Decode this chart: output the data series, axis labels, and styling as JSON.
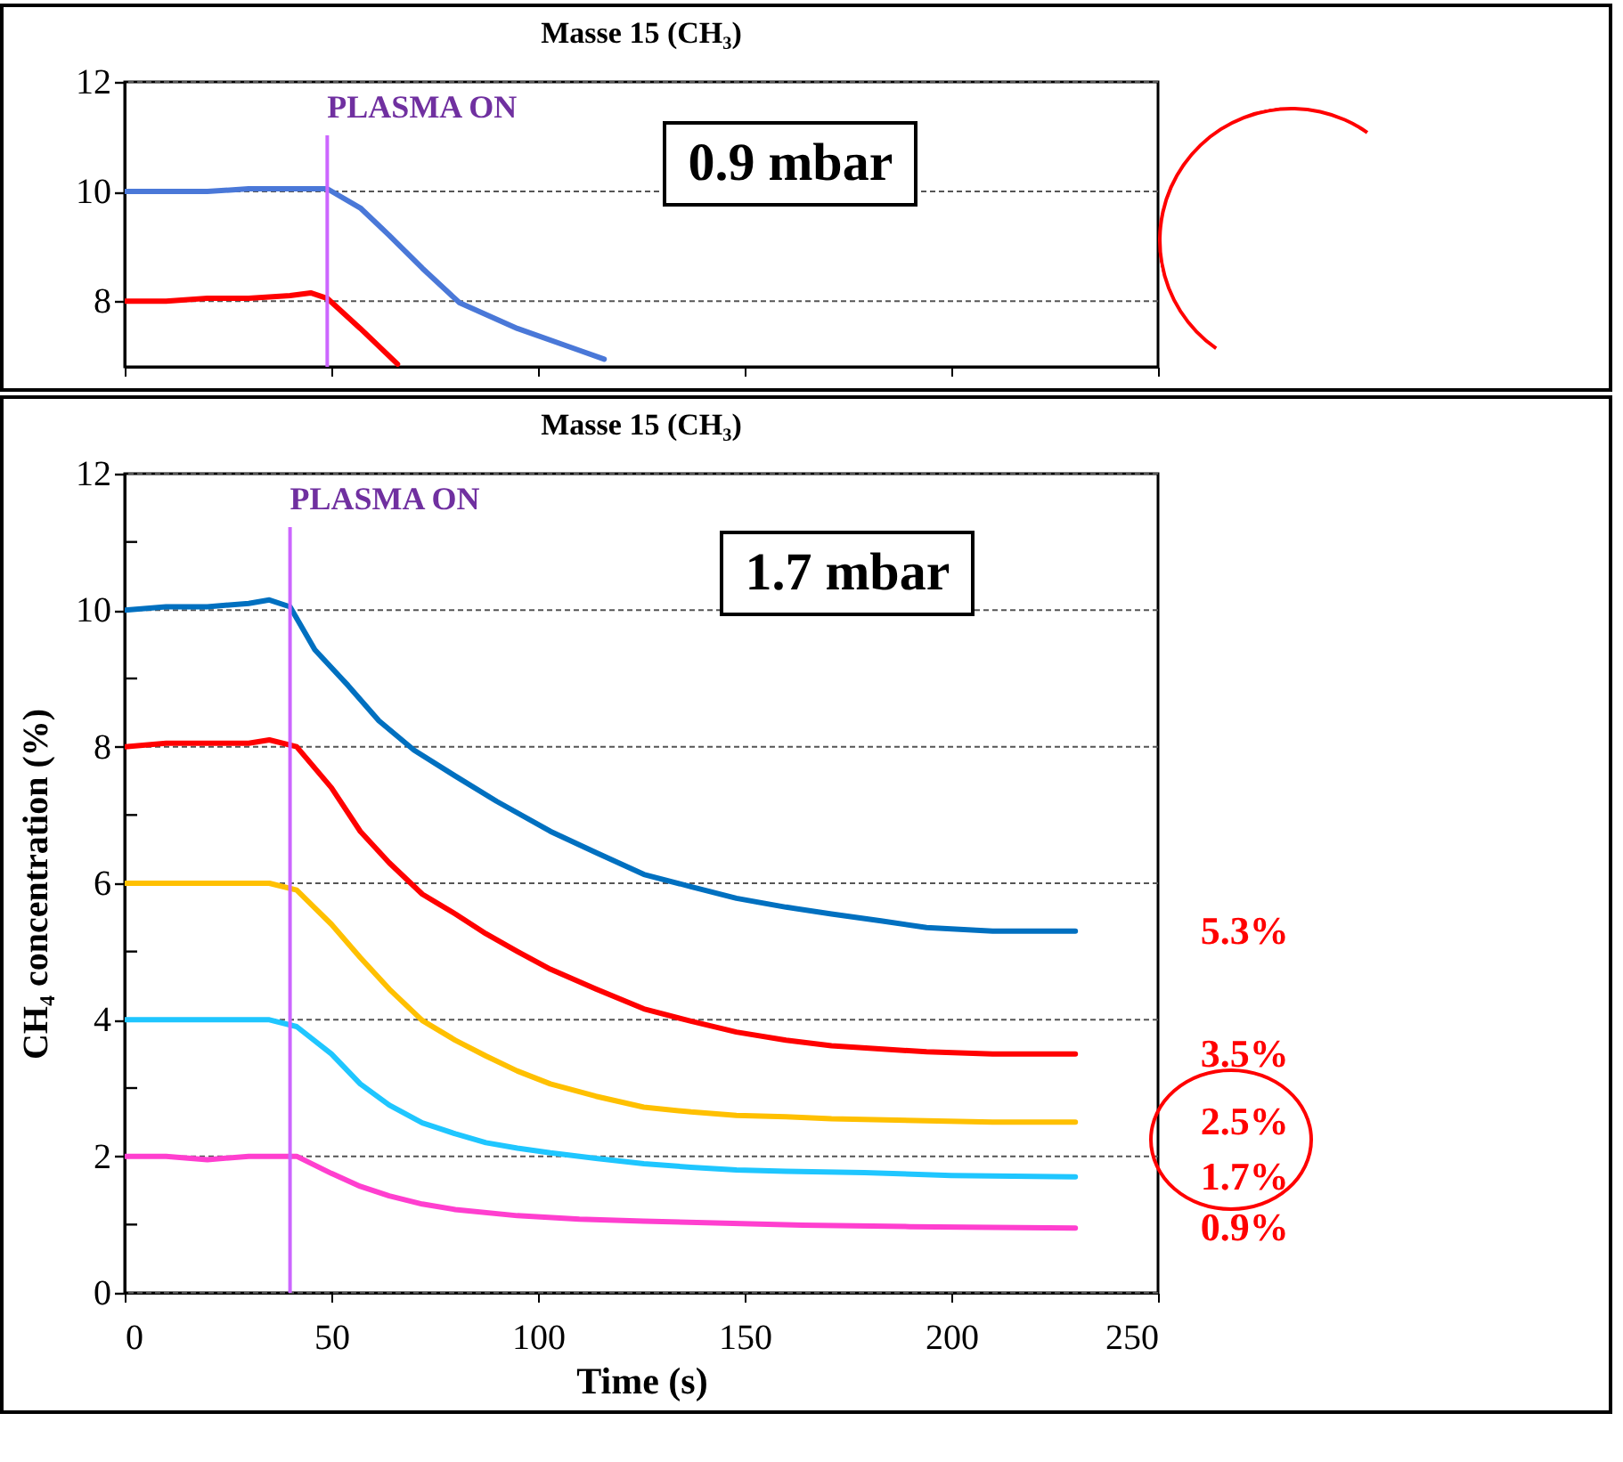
{
  "chart_data": [
    {
      "type": "line",
      "title": "Masse 15 (CH₃)",
      "annotations": [
        "0.9 mbar"
      ],
      "xlim": [
        0,
        250
      ],
      "xticks": [
        {
          "value": 0,
          "label": null
        },
        {
          "value": 50,
          "label": null
        },
        {
          "value": 100,
          "label": null
        },
        {
          "value": 150,
          "label": null
        },
        {
          "value": 200,
          "label": null
        },
        {
          "value": 250,
          "label": null
        }
      ],
      "ylim": [
        6.8,
        12
      ],
      "yticks": [
        8,
        10,
        12
      ],
      "tick_labels": "y",
      "grid": "y",
      "legend": false,
      "marker": "none",
      "line_style": "solid",
      "ref_lines": [
        {
          "axis": "x",
          "value": 49,
          "label": "PLASMA ON",
          "color": "#cc66ff"
        }
      ],
      "series": [
        {
          "color": "#4a78d8",
          "x": [
            0,
            10,
            20,
            30,
            40,
            49,
            57,
            64,
            72,
            81,
            95,
            110,
            116
          ],
          "values": [
            10,
            10,
            10,
            10.05,
            10.05,
            10.05,
            9.7,
            9.2,
            8.6,
            7.97,
            7.5,
            7.1,
            6.94
          ]
        },
        {
          "color": "#ff0000",
          "x": [
            0,
            10,
            20,
            30,
            40,
            45,
            49,
            57,
            66
          ],
          "values": [
            8,
            8,
            8.05,
            8.05,
            8.1,
            8.15,
            8.05,
            7.5,
            6.85
          ]
        }
      ]
    },
    {
      "type": "line",
      "title": "Masse 15 (CH₃)",
      "xlabel": "Time (s)",
      "ylabel": "CH₄ concentration (%)",
      "annotations": [
        "1.7 mbar",
        "5.3%",
        "3.5%",
        "2.5%",
        "1.7%",
        "0.9%"
      ],
      "xlim": [
        0,
        250
      ],
      "xticks": [
        0,
        50,
        100,
        150,
        200,
        250
      ],
      "ylim": [
        0,
        12
      ],
      "yticks": [
        0,
        {
          "value": 1,
          "label": null
        },
        2,
        {
          "value": 3,
          "label": null
        },
        4,
        {
          "value": 5,
          "label": null
        },
        6,
        {
          "value": 7,
          "label": null
        },
        8,
        {
          "value": 9,
          "label": null
        },
        10,
        {
          "value": 11,
          "label": null
        },
        12
      ],
      "grid": "y",
      "legend": false,
      "marker": "none",
      "line_style": "solid",
      "ref_lines": [
        {
          "axis": "x",
          "value": 40,
          "label": "PLASMA ON",
          "color": "#cc66ff"
        }
      ],
      "series": [
        {
          "color": "#0070c0",
          "x": [
            0,
            10,
            20,
            30,
            35,
            40,
            46,
            54,
            61.5,
            70,
            80,
            90,
            103,
            114,
            125.6,
            137,
            148,
            160,
            171,
            183,
            194,
            210,
            230
          ],
          "values": [
            10,
            10.05,
            10.05,
            10.1,
            10.15,
            10.05,
            9.42,
            8.9,
            8.38,
            7.95,
            7.57,
            7.2,
            6.76,
            6.45,
            6.13,
            5.95,
            5.78,
            5.65,
            5.55,
            5.45,
            5.35,
            5.3,
            5.3
          ]
        },
        {
          "color": "#ff0000",
          "x": [
            0,
            10,
            20,
            30,
            35,
            41.6,
            50,
            57,
            64,
            72,
            80,
            87.4,
            95,
            103,
            114,
            125.6,
            137,
            148,
            160,
            171,
            194,
            210,
            230
          ],
          "values": [
            8,
            8.05,
            8.05,
            8.05,
            8.1,
            8,
            7.4,
            6.76,
            6.3,
            5.84,
            5.55,
            5.26,
            5,
            4.74,
            4.45,
            4.16,
            3.98,
            3.82,
            3.7,
            3.62,
            3.53,
            3.5,
            3.5
          ]
        },
        {
          "color": "#ffc000",
          "x": [
            0,
            10,
            20,
            30,
            35,
            41.6,
            50,
            57,
            64,
            72,
            80,
            87.4,
            95,
            103,
            114,
            125.6,
            137,
            148,
            160,
            171,
            194,
            210,
            230
          ],
          "values": [
            6,
            6,
            6,
            6,
            6,
            5.9,
            5.4,
            4.91,
            4.45,
            3.99,
            3.7,
            3.47,
            3.25,
            3.06,
            2.88,
            2.72,
            2.65,
            2.6,
            2.58,
            2.55,
            2.52,
            2.5,
            2.5
          ]
        },
        {
          "color": "#1fc6ff",
          "x": [
            0,
            10,
            20,
            30,
            35,
            41.6,
            50,
            57,
            64,
            72,
            80,
            87.4,
            95,
            103,
            114,
            125.6,
            137,
            148,
            160,
            179,
            200,
            230
          ],
          "values": [
            4,
            4,
            4,
            4,
            4,
            3.9,
            3.5,
            3.06,
            2.75,
            2.49,
            2.33,
            2.2,
            2.12,
            2.05,
            1.97,
            1.89,
            1.84,
            1.8,
            1.78,
            1.76,
            1.72,
            1.7
          ]
        },
        {
          "color": "#ff3fcf",
          "x": [
            0,
            10,
            20,
            30,
            35,
            41.6,
            50,
            57,
            64,
            72,
            80,
            95,
            110,
            125.6,
            145,
            164,
            190,
            230
          ],
          "values": [
            2,
            2,
            1.95,
            2,
            2,
            2,
            1.75,
            1.56,
            1.42,
            1.3,
            1.22,
            1.13,
            1.08,
            1.05,
            1.02,
            0.99,
            0.97,
            0.95
          ]
        }
      ]
    }
  ]
}
